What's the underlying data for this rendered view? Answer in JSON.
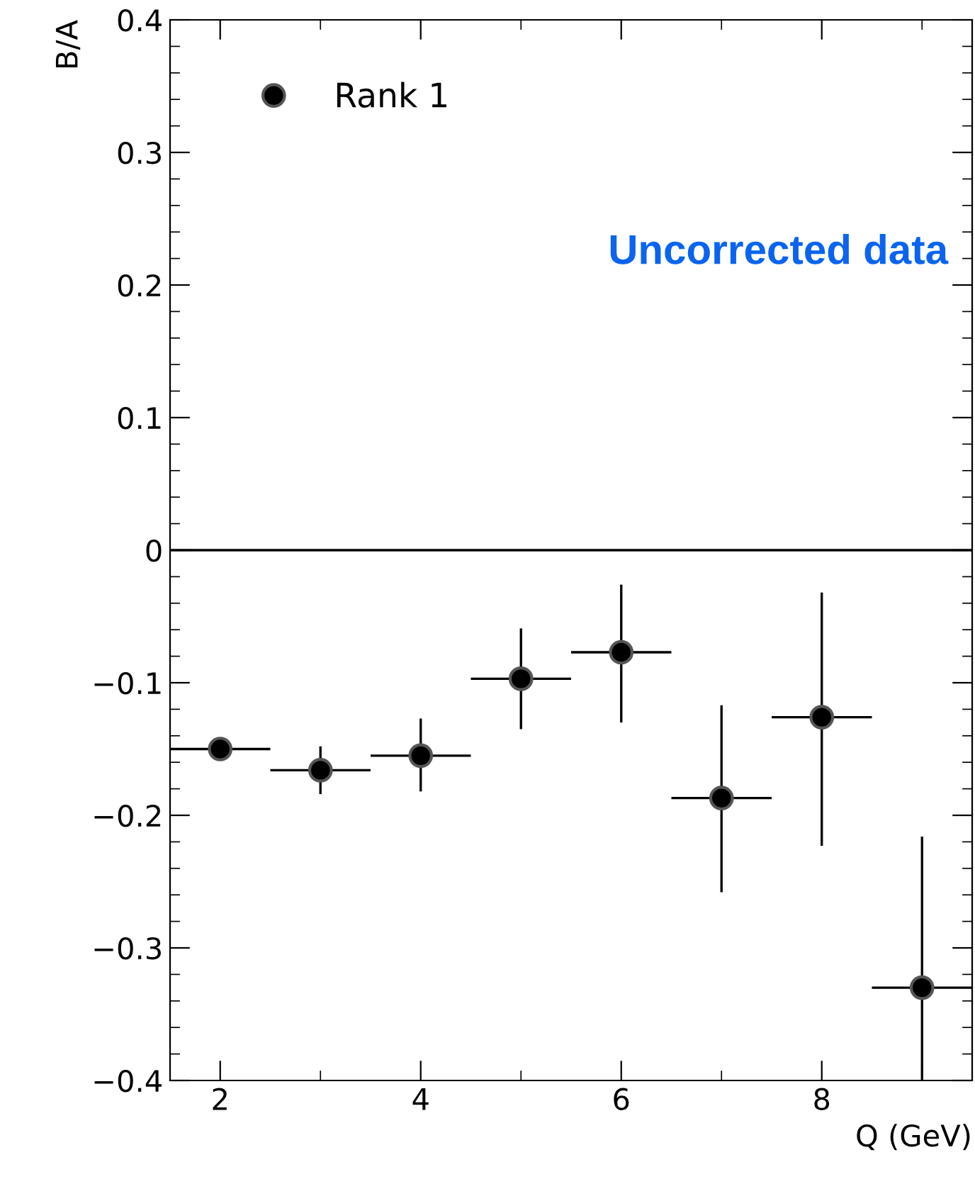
{
  "chart_data": {
    "type": "scatter",
    "xlabel": "Q (GeV)",
    "ylabel": "B/A",
    "annotations": [
      "Uncorrected data"
    ],
    "x": [
      2,
      3,
      4,
      5,
      6,
      7,
      8,
      9
    ],
    "series": [
      {
        "name": "Rank 1",
        "color": "#000000",
        "values": [
          -0.15,
          -0.166,
          -0.155,
          -0.097,
          -0.077,
          -0.187,
          -0.126,
          -0.33
        ],
        "errors": [
          [
            -0.155,
            -0.145
          ],
          [
            -0.184,
            -0.148
          ],
          [
            -0.182,
            -0.127
          ],
          [
            -0.135,
            -0.059
          ],
          [
            -0.13,
            -0.026
          ],
          [
            -0.258,
            -0.117
          ],
          [
            -0.223,
            -0.032
          ],
          [
            -0.4,
            -0.216
          ]
        ],
        "xerrors": [
          0.5,
          0.5,
          0.5,
          0.5,
          0.5,
          0.5,
          0.5,
          0.5
        ]
      }
    ],
    "xlim": [
      1.5,
      9.5
    ],
    "xticks": [
      2,
      4,
      6,
      8
    ],
    "ylim": [
      -0.4,
      0.4
    ],
    "yticks": [
      -0.4,
      -0.3,
      -0.2,
      -0.1,
      0,
      0.1,
      0.2,
      0.3,
      0.4
    ],
    "ref_lines": [
      {
        "axis": "y",
        "value": 0,
        "color": "#000000"
      }
    ],
    "marker": "circle",
    "grid": false,
    "legend": "top left"
  }
}
